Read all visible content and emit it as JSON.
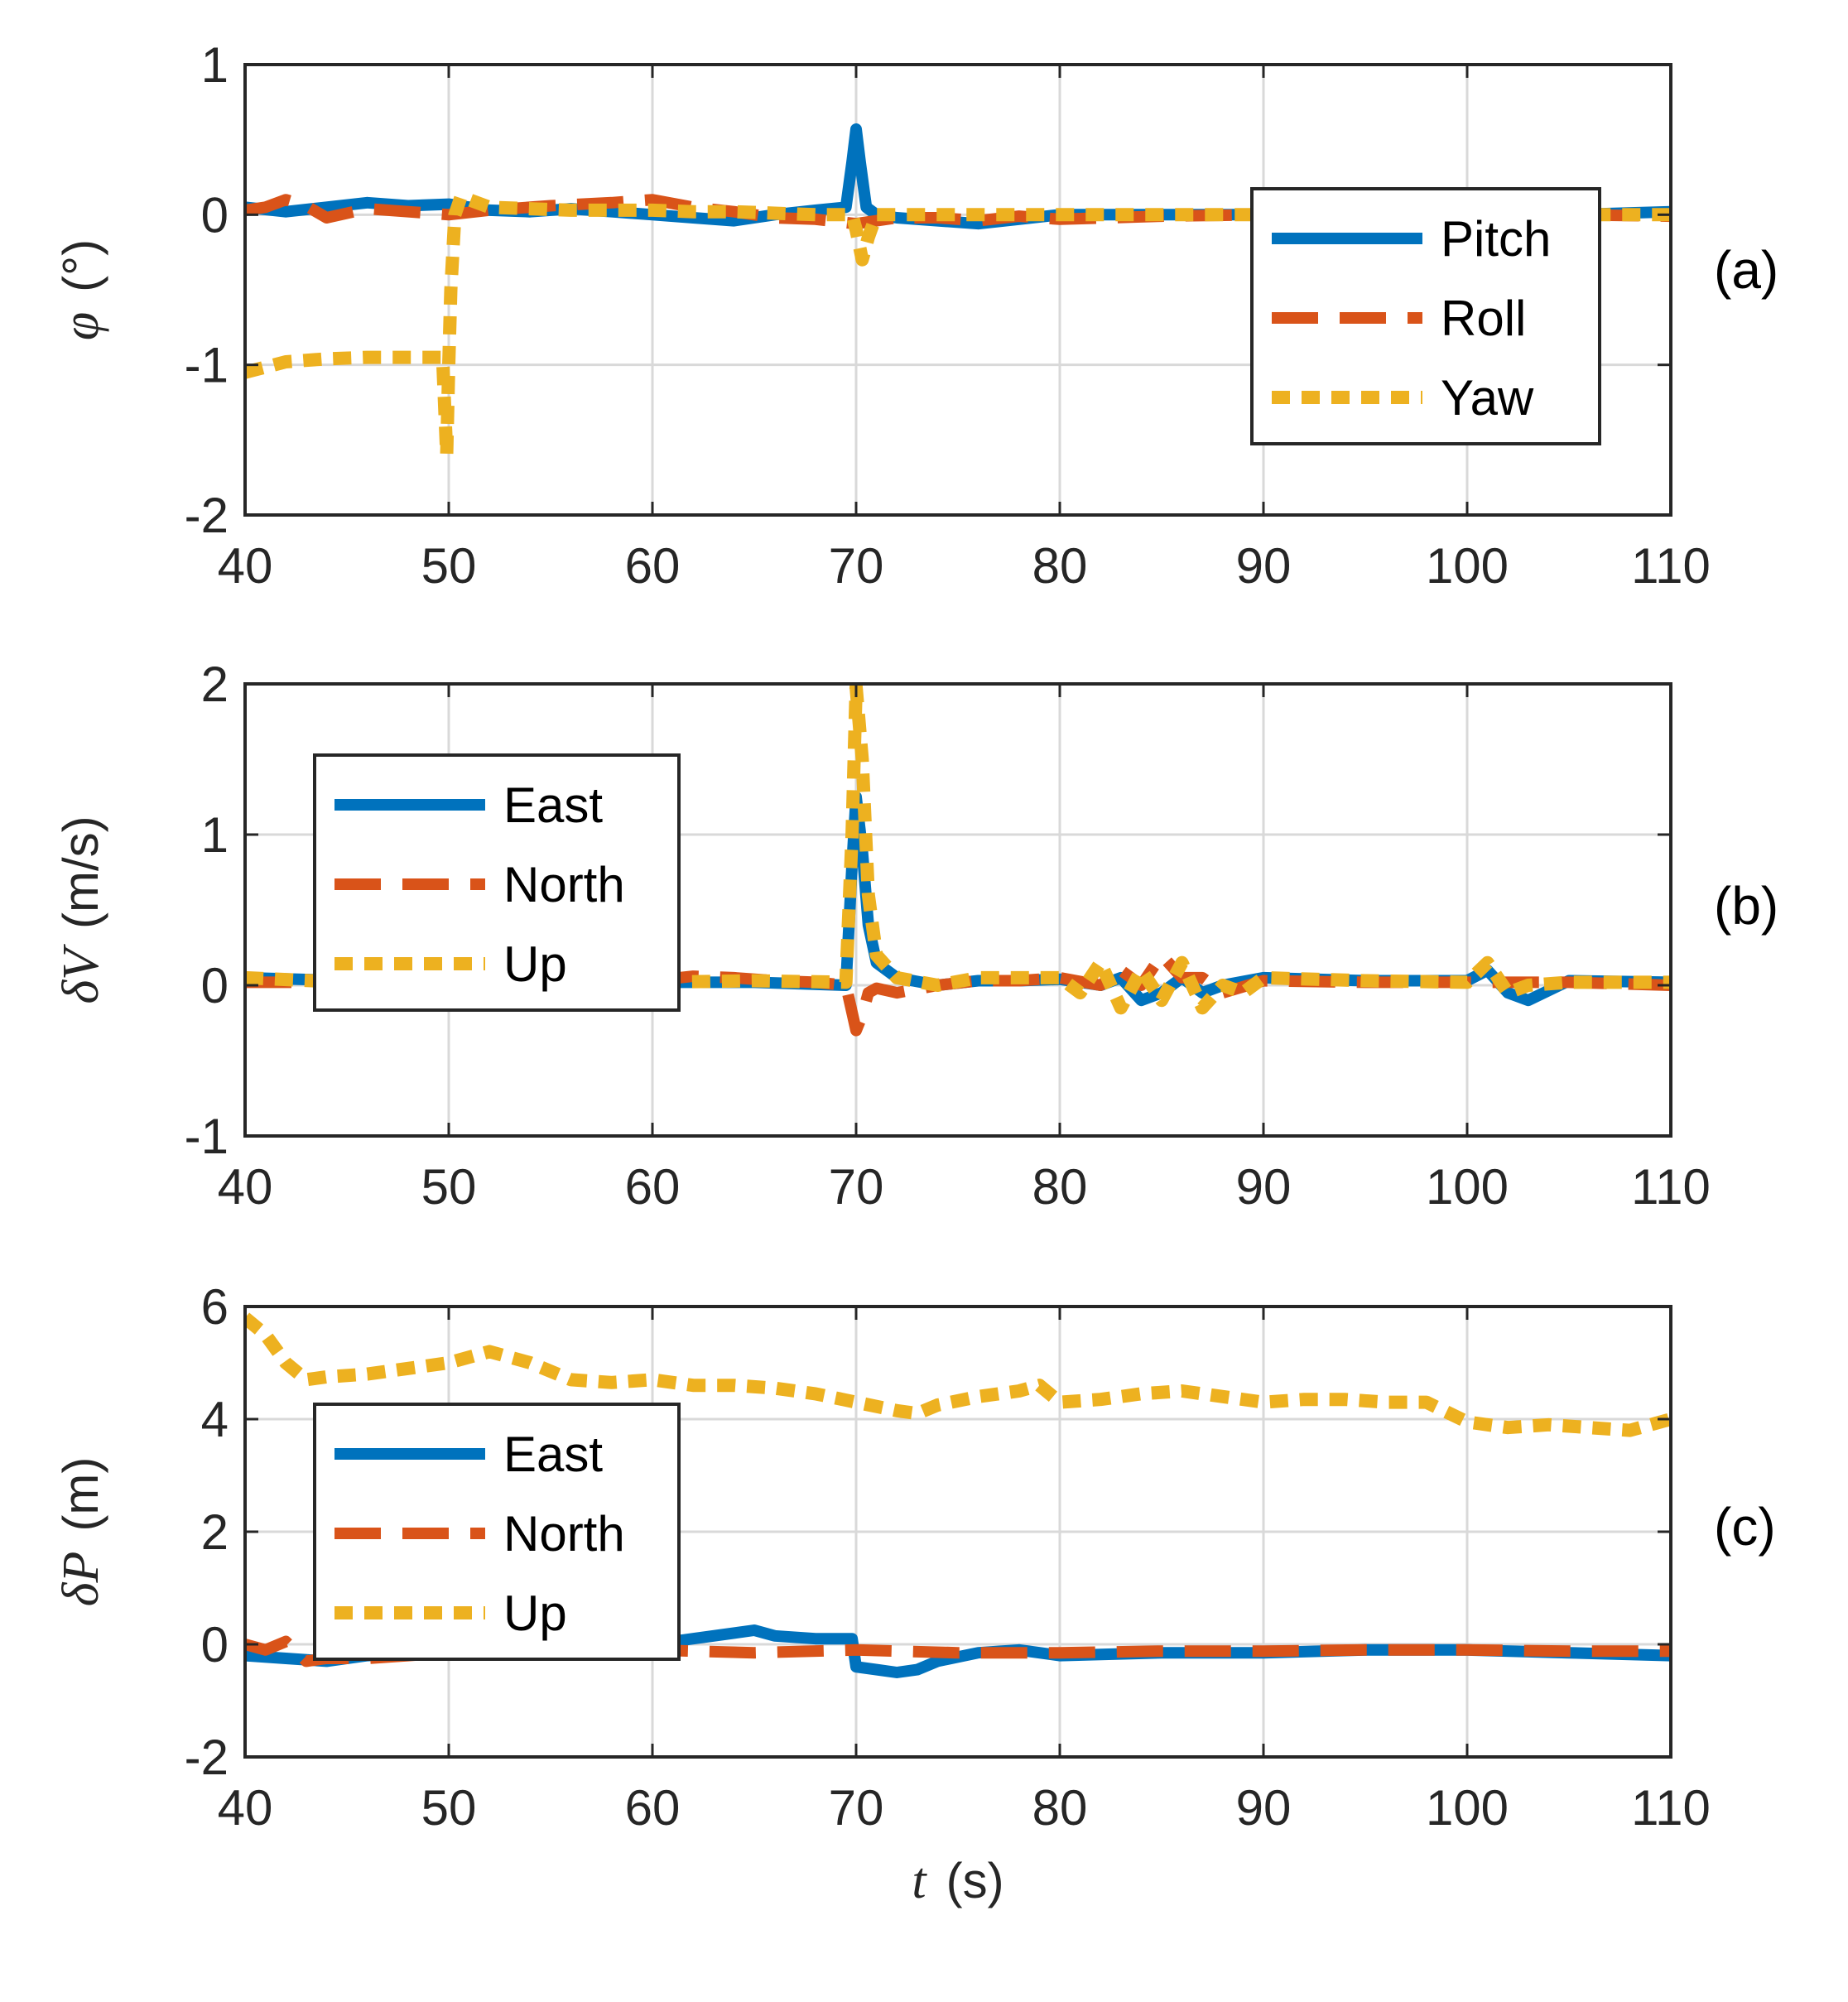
{
  "chart_data": [
    {
      "type": "line",
      "panel_tag": "(a)",
      "ylabel_symbol": "φ",
      "ylabel_unit": "(°)",
      "xlabel_symbol": "",
      "xlabel_unit": "",
      "xlim": [
        40,
        110
      ],
      "ylim": [
        -2,
        1
      ],
      "xticks": [
        40,
        50,
        60,
        70,
        80,
        90,
        100,
        110
      ],
      "yticks": [
        -2,
        -1,
        0,
        1
      ],
      "grid": true,
      "legend_position": "right",
      "series": [
        {
          "name": "Pitch",
          "style": "solid",
          "color": "#0072BD",
          "x": [
            40,
            42,
            44,
            46,
            48,
            50,
            52,
            54,
            56,
            58,
            60,
            62,
            64,
            66,
            68,
            69.5,
            69.8,
            70,
            70.2,
            70.5,
            71,
            72,
            74,
            76,
            78,
            80,
            85,
            90,
            95,
            100,
            105,
            110
          ],
          "y": [
            0.05,
            0.02,
            0.05,
            0.08,
            0.06,
            0.07,
            0.03,
            0.02,
            0.04,
            0.02,
            0.0,
            -0.02,
            -0.04,
            0.0,
            0.03,
            0.05,
            0.35,
            0.57,
            0.35,
            0.05,
            0.0,
            -0.02,
            -0.04,
            -0.06,
            -0.03,
            0.0,
            0.0,
            0.0,
            0.0,
            0.0,
            0.0,
            0.02
          ]
        },
        {
          "name": "Roll",
          "style": "dashed",
          "color": "#D95319",
          "x": [
            40,
            41,
            42,
            43,
            44,
            46,
            48,
            50,
            52,
            55,
            58,
            60,
            62,
            64,
            66,
            68,
            70,
            72,
            74,
            76,
            78,
            80,
            85,
            90,
            95,
            100,
            105,
            110
          ],
          "y": [
            0.03,
            0.05,
            0.1,
            0.06,
            -0.02,
            0.04,
            0.02,
            0.0,
            0.03,
            0.06,
            0.08,
            0.1,
            0.05,
            0.02,
            -0.02,
            -0.03,
            -0.06,
            -0.02,
            -0.02,
            -0.04,
            -0.01,
            -0.03,
            -0.01,
            0.0,
            0.0,
            0.02,
            0.0,
            -0.01
          ]
        },
        {
          "name": "Yaw",
          "style": "dotted",
          "color": "#EDB120",
          "x": [
            40,
            42,
            44,
            46,
            48,
            49.7,
            49.9,
            50.0,
            50.1,
            50.3,
            50.6,
            51,
            52,
            54,
            56,
            58,
            60,
            62,
            64,
            66,
            68,
            69.8,
            70.0,
            70.3,
            70.6,
            71,
            72,
            75,
            80,
            85,
            90,
            95,
            100,
            105,
            110
          ],
          "y": [
            -1.05,
            -0.98,
            -0.96,
            -0.95,
            -0.95,
            -0.95,
            -1.6,
            -1.0,
            -0.5,
            0.0,
            0.12,
            0.1,
            0.05,
            0.04,
            0.03,
            0.03,
            0.03,
            0.02,
            0.02,
            0.01,
            0.0,
            0.0,
            -0.1,
            -0.3,
            -0.15,
            0.0,
            0.0,
            0.0,
            0.0,
            0.0,
            0.0,
            0.0,
            0.0,
            0.0,
            0.0
          ]
        }
      ]
    },
    {
      "type": "line",
      "panel_tag": "(b)",
      "ylabel_symbol": "δV",
      "ylabel_unit": "(m/s)",
      "xlabel_symbol": "",
      "xlabel_unit": "",
      "xlim": [
        40,
        110
      ],
      "ylim": [
        -1,
        2
      ],
      "xticks": [
        40,
        50,
        60,
        70,
        80,
        90,
        100,
        110
      ],
      "yticks": [
        -1,
        0,
        1,
        2
      ],
      "grid": true,
      "legend_position": "upper-left",
      "series": [
        {
          "name": "East",
          "style": "solid",
          "color": "#0072BD",
          "x": [
            40,
            45,
            50,
            55,
            60,
            65,
            69.5,
            69.8,
            70.0,
            70.3,
            70.6,
            71,
            72,
            74,
            76,
            78,
            80,
            82,
            83,
            84,
            85,
            86,
            87,
            88,
            90,
            95,
            100,
            101,
            102,
            103,
            105,
            110
          ],
          "y": [
            0.05,
            0.03,
            0.02,
            0.02,
            0.02,
            0.02,
            0.0,
            0.8,
            1.25,
            0.9,
            0.4,
            0.15,
            0.05,
            0.0,
            0.03,
            0.03,
            0.04,
            0.0,
            0.05,
            -0.1,
            -0.05,
            0.05,
            -0.05,
            0.0,
            0.05,
            0.03,
            0.03,
            0.1,
            -0.05,
            -0.1,
            0.03,
            0.02
          ]
        },
        {
          "name": "North",
          "style": "dashed",
          "color": "#D95319",
          "x": [
            40,
            45,
            50,
            55,
            60,
            62,
            64,
            66,
            68,
            69.5,
            70.0,
            70.3,
            70.6,
            71,
            72,
            74,
            76,
            78,
            80,
            82,
            83,
            84,
            85,
            86,
            87,
            88,
            90,
            95,
            100,
            102,
            105,
            110
          ],
          "y": [
            0.02,
            0.02,
            0.02,
            0.02,
            0.03,
            0.06,
            0.05,
            0.03,
            0.02,
            0.0,
            -0.3,
            -0.2,
            -0.05,
            -0.02,
            -0.05,
            0.0,
            0.03,
            0.03,
            0.05,
            0.0,
            0.1,
            0.0,
            0.2,
            0.05,
            0.05,
            -0.05,
            0.03,
            0.02,
            0.02,
            0.02,
            0.02,
            0.0
          ]
        },
        {
          "name": "Up",
          "style": "dotted",
          "color": "#EDB120",
          "x": [
            40,
            45,
            50,
            55,
            60,
            65,
            69.5,
            69.8,
            70.0,
            70.3,
            70.6,
            71,
            72,
            74,
            76,
            78,
            80,
            81,
            82,
            83,
            84,
            85,
            86,
            87,
            88,
            89,
            90,
            95,
            100,
            101,
            102,
            103,
            105,
            110
          ],
          "y": [
            0.05,
            0.02,
            0.02,
            0.02,
            0.02,
            0.03,
            0.02,
            1.0,
            1.98,
            1.5,
            0.6,
            0.2,
            0.05,
            0.0,
            0.05,
            0.05,
            0.05,
            -0.05,
            0.15,
            -0.15,
            0.1,
            -0.1,
            0.15,
            -0.15,
            0.0,
            -0.05,
            0.05,
            0.03,
            0.02,
            0.15,
            -0.05,
            0.0,
            0.02,
            0.02
          ]
        }
      ]
    },
    {
      "type": "line",
      "panel_tag": "(c)",
      "ylabel_symbol": "δP",
      "ylabel_unit": "(m)",
      "xlabel_symbol": "t",
      "xlabel_unit": "(s)",
      "xlim": [
        40,
        110
      ],
      "ylim": [
        -2,
        6
      ],
      "xticks": [
        40,
        50,
        60,
        70,
        80,
        90,
        100,
        110
      ],
      "yticks": [
        -2,
        0,
        2,
        4,
        6
      ],
      "grid": true,
      "legend_position": "left",
      "series": [
        {
          "name": "East",
          "style": "solid",
          "color": "#0072BD",
          "x": [
            40,
            42,
            44,
            46,
            48,
            50,
            52,
            55,
            58,
            60,
            62,
            64,
            65,
            66,
            68,
            69.8,
            70.0,
            71,
            72,
            73,
            74,
            76,
            78,
            80,
            85,
            90,
            95,
            100,
            105,
            110
          ],
          "y": [
            -0.2,
            -0.25,
            -0.3,
            -0.2,
            -0.15,
            -0.1,
            -0.05,
            -0.05,
            -0.05,
            0.0,
            0.1,
            0.2,
            0.25,
            0.15,
            0.1,
            0.1,
            -0.4,
            -0.45,
            -0.5,
            -0.45,
            -0.3,
            -0.15,
            -0.1,
            -0.2,
            -0.15,
            -0.15,
            -0.1,
            -0.1,
            -0.15,
            -0.2
          ]
        },
        {
          "name": "North",
          "style": "dashed",
          "color": "#D95319",
          "x": [
            40,
            41,
            42,
            43,
            44,
            46,
            48,
            50,
            55,
            60,
            65,
            70,
            75,
            80,
            85,
            90,
            95,
            100,
            105,
            110
          ],
          "y": [
            0.0,
            -0.1,
            0.05,
            -0.3,
            -0.25,
            -0.25,
            -0.2,
            -0.15,
            -0.1,
            -0.1,
            -0.15,
            -0.1,
            -0.15,
            -0.15,
            -0.12,
            -0.12,
            -0.1,
            -0.1,
            -0.12,
            -0.12
          ]
        },
        {
          "name": "Up",
          "style": "dotted",
          "color": "#EDB120",
          "x": [
            40,
            41,
            42,
            43,
            44,
            46,
            48,
            50,
            52,
            54,
            56,
            58,
            60,
            62,
            64,
            66,
            68,
            70,
            72,
            73,
            74,
            76,
            78,
            79,
            80,
            82,
            84,
            86,
            88,
            90,
            92,
            94,
            96,
            98,
            100,
            102,
            104,
            106,
            108,
            110
          ],
          "y": [
            5.8,
            5.5,
            5.0,
            4.7,
            4.75,
            4.8,
            4.9,
            5.0,
            5.2,
            5.0,
            4.7,
            4.65,
            4.7,
            4.6,
            4.6,
            4.55,
            4.45,
            4.3,
            4.15,
            4.1,
            4.25,
            4.4,
            4.5,
            4.6,
            4.3,
            4.35,
            4.45,
            4.5,
            4.4,
            4.3,
            4.35,
            4.35,
            4.3,
            4.3,
            3.95,
            3.85,
            3.9,
            3.85,
            3.8,
            4.0
          ]
        }
      ]
    }
  ]
}
